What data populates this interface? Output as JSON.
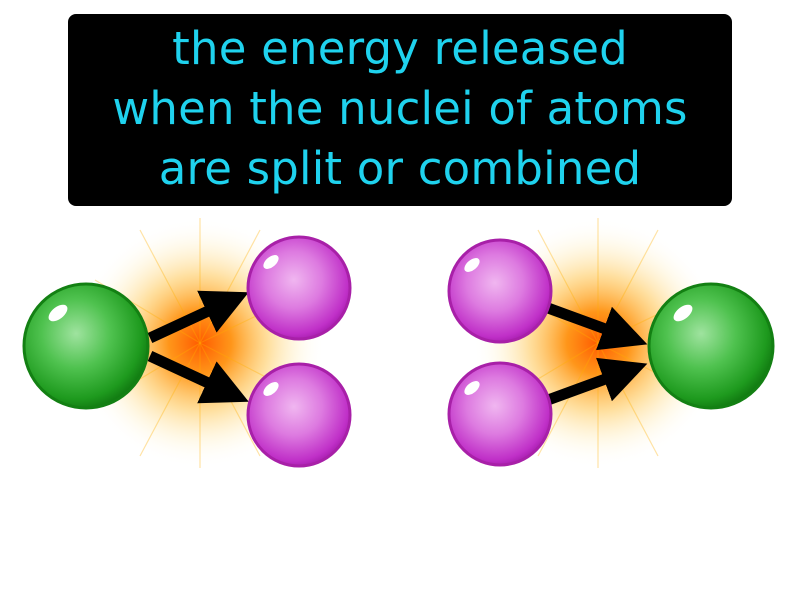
{
  "definition": {
    "lines": [
      "the energy released",
      "when the nuclei of atoms",
      "are split or combined"
    ]
  },
  "colors": {
    "text": "#1fd2ee",
    "box": "#000000",
    "large_atom": "#1c9a1c",
    "small_atom": "#cc33cc",
    "arrow": "#000000",
    "energy_glow": "#ff8800"
  },
  "panels": [
    {
      "process": "split",
      "large_atoms": 1,
      "small_atoms": 2,
      "arrows": 2
    },
    {
      "process": "combined",
      "large_atoms": 1,
      "small_atoms": 2,
      "arrows": 2
    }
  ]
}
